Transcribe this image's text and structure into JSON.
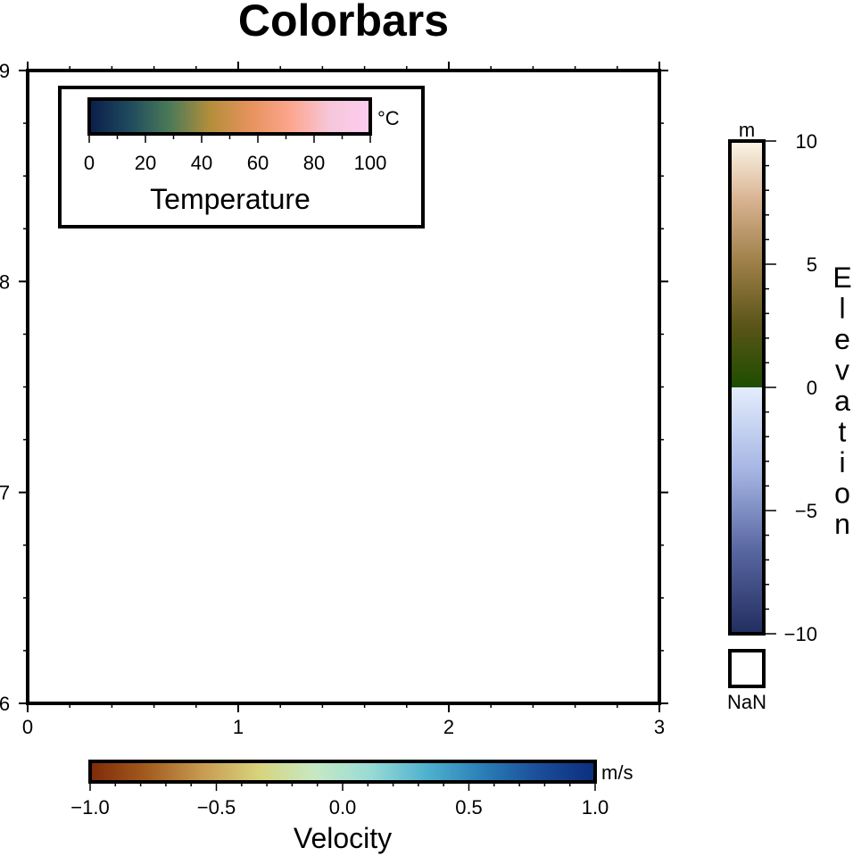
{
  "title": "Colorbars",
  "chart_data": {
    "type": "scatter",
    "title": "Colorbars",
    "xlim": [
      0,
      3
    ],
    "ylim": [
      6,
      9
    ],
    "x_ticks": [
      "0",
      "1",
      "2",
      "3"
    ],
    "y_ticks": [
      "6",
      "7",
      "8",
      "9"
    ],
    "x_values": [
      0,
      1,
      2,
      3
    ],
    "y_values": [
      6,
      7,
      8,
      9
    ],
    "grid": false,
    "series": [],
    "colorbars": [
      {
        "id": "temperature",
        "label": "Temperature",
        "unit": "°C",
        "range": [
          0,
          100
        ],
        "tick_values": [
          0,
          20,
          40,
          60,
          80,
          100
        ],
        "tick_labels": [
          "0",
          "20",
          "40",
          "60",
          "80",
          "100"
        ],
        "placement": "inside top-left, horizontal",
        "colors": [
          "#0b1d4b",
          "#1e4a5e",
          "#4b7a58",
          "#b38e3a",
          "#e6925c",
          "#fda58d",
          "#f6c7da",
          "#ffccf0"
        ]
      },
      {
        "id": "velocity",
        "label": "Velocity",
        "unit": "m/s",
        "range": [
          -1.0,
          1.0
        ],
        "tick_values": [
          -1.0,
          -0.5,
          0.0,
          0.5,
          1.0
        ],
        "tick_labels": [
          "−1.0",
          "−0.5",
          "0.0",
          "0.5",
          "1.0"
        ],
        "placement": "bottom, horizontal",
        "colors": [
          "#7e2a08",
          "#a35b1e",
          "#c89a52",
          "#d8d37c",
          "#c6e9c3",
          "#98dbd6",
          "#4fb1cf",
          "#2a7eb6",
          "#1a4d99",
          "#0c2e7d"
        ]
      },
      {
        "id": "elevation",
        "label": "Elevation",
        "unit": "m",
        "range": [
          -10,
          10
        ],
        "tick_values": [
          -10,
          -5,
          0,
          5,
          10
        ],
        "tick_labels": [
          "−10",
          "−5",
          "0",
          "5",
          "10"
        ],
        "nan_label": "NaN",
        "placement": "right, vertical",
        "colors_negative": [
          "#212d5e",
          "#5866a0",
          "#a6b6e4",
          "#e4edfd"
        ],
        "colors_positive": [
          "#1e4d00",
          "#5a5418",
          "#9c7e46",
          "#d6b08e",
          "#fcf6e8"
        ]
      }
    ]
  }
}
